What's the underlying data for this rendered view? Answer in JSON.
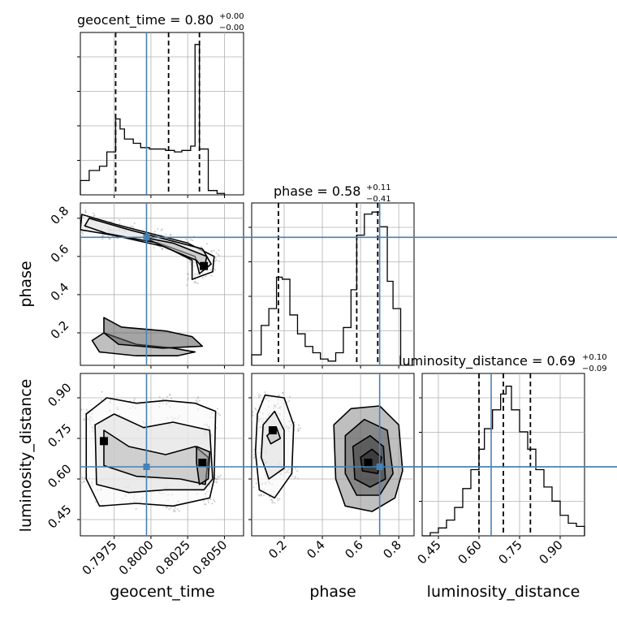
{
  "chart_data": {
    "type": "corner",
    "parameters": [
      "geocent_time",
      "phase",
      "luminosity_distance"
    ],
    "truth_color": "#4682b4",
    "contour_color": "#000000",
    "histograms": [
      {
        "param": "geocent_time",
        "title_label": "geocent_time = 0.80",
        "title_sup": "+0.00",
        "title_sub": "−0.00",
        "range": [
          0.7952,
          0.8063
        ],
        "bin_edges": [
          0.7952,
          0.7958,
          0.7965,
          0.797,
          0.7976,
          0.7979,
          0.7982,
          0.7988,
          0.7993,
          0.7999,
          0.8005,
          0.801,
          0.8016,
          0.8021,
          0.8027,
          0.803,
          0.8033,
          0.8039,
          0.8045,
          0.805
        ],
        "counts": [
          10,
          17,
          20,
          30,
          53,
          46,
          39,
          36,
          33,
          32,
          32,
          31,
          30,
          31,
          34,
          105,
          32,
          3,
          1
        ],
        "ymax": 110,
        "quantiles": [
          0.7976,
          0.8012,
          0.8033
        ],
        "truth": 0.7997,
        "ticks": [
          0.7975,
          0.8,
          0.8025,
          0.805
        ],
        "tick_labels": [
          "0.7975",
          "0.8000",
          "0.8025",
          "0.8050"
        ]
      },
      {
        "param": "phase",
        "title_label": "phase = 0.58",
        "title_sup": "+0.11",
        "title_sub": "−0.41",
        "range": [
          0.03,
          0.88
        ],
        "bin_edges": [
          0.03,
          0.08,
          0.12,
          0.16,
          0.19,
          0.23,
          0.27,
          0.31,
          0.35,
          0.39,
          0.43,
          0.47,
          0.51,
          0.55,
          0.58,
          0.62,
          0.66,
          0.7,
          0.74,
          0.77,
          0.81
        ],
        "counts": [
          5,
          19,
          27,
          42,
          41,
          24,
          15,
          9,
          6,
          3,
          2,
          6,
          18,
          36,
          62,
          72,
          73,
          66,
          40,
          27
        ],
        "ymax": 75,
        "quantiles": [
          0.17,
          0.58,
          0.69
        ],
        "truth": 0.7,
        "ticks": [
          0.2,
          0.4,
          0.6,
          0.8
        ],
        "tick_labels": [
          "0.2",
          "0.4",
          "0.6",
          "0.8"
        ]
      },
      {
        "param": "luminosity_distance",
        "title_label": "luminosity_distance = 0.69",
        "title_sup": "+0.10",
        "title_sub": "−0.09",
        "range": [
          0.39,
          0.99
        ],
        "bin_edges": [
          0.39,
          0.42,
          0.45,
          0.48,
          0.51,
          0.54,
          0.57,
          0.6,
          0.62,
          0.65,
          0.68,
          0.7,
          0.72,
          0.75,
          0.78,
          0.81,
          0.84,
          0.87,
          0.9,
          0.93,
          0.96,
          0.99
        ],
        "counts": [
          0,
          2,
          5,
          10,
          18,
          30,
          42,
          55,
          68,
          80,
          90,
          95,
          80,
          66,
          55,
          42,
          31,
          22,
          13,
          8,
          6
        ],
        "ymax": 100,
        "quantiles": [
          0.6,
          0.69,
          0.79
        ],
        "truth": 0.645,
        "ticks": [
          0.45,
          0.6,
          0.75,
          0.9
        ],
        "tick_labels": [
          "0.45",
          "0.60",
          "0.75",
          "0.90"
        ]
      }
    ],
    "pairs": [
      {
        "x_param": "geocent_time",
        "y_param": "phase",
        "x_range": [
          0.7952,
          0.8063
        ],
        "y_range": [
          0.03,
          0.88
        ],
        "truth": [
          0.7997,
          0.7
        ],
        "y_ticks": [
          0.2,
          0.4,
          0.6,
          0.8
        ],
        "y_tick_labels": [
          "0.2",
          "0.4",
          "0.6",
          "0.8"
        ],
        "density_peaks": [
          [
            0.8036,
            0.55
          ]
        ],
        "contour_paths": [
          [
            [
              0.7953,
              0.82
            ],
            [
              0.7975,
              0.77
            ],
            [
              0.8005,
              0.71
            ],
            [
              0.8025,
              0.67
            ],
            [
              0.8043,
              0.6
            ],
            [
              0.8042,
              0.52
            ],
            [
              0.8028,
              0.48
            ],
            [
              0.8028,
              0.58
            ],
            [
              0.801,
              0.65
            ],
            [
              0.7975,
              0.71
            ],
            [
              0.7952,
              0.74
            ]
          ],
          [
            [
              0.7958,
              0.8
            ],
            [
              0.7985,
              0.74
            ],
            [
              0.801,
              0.69
            ],
            [
              0.8035,
              0.64
            ],
            [
              0.8041,
              0.56
            ],
            [
              0.8033,
              0.51
            ],
            [
              0.803,
              0.6
            ],
            [
              0.8005,
              0.67
            ],
            [
              0.797,
              0.72
            ],
            [
              0.7955,
              0.76
            ]
          ],
          [
            [
              0.7995,
              0.7
            ],
            [
              0.8015,
              0.67
            ],
            [
              0.8038,
              0.6
            ],
            [
              0.8036,
              0.53
            ],
            [
              0.8031,
              0.58
            ],
            [
              0.8012,
              0.64
            ]
          ],
          [
            [
              0.7968,
              0.2
            ],
            [
              0.799,
              0.14
            ],
            [
              0.8015,
              0.12
            ],
            [
              0.803,
              0.1
            ],
            [
              0.8018,
              0.08
            ],
            [
              0.799,
              0.08
            ],
            [
              0.7965,
              0.1
            ],
            [
              0.796,
              0.16
            ]
          ],
          [
            [
              0.7968,
              0.28
            ],
            [
              0.798,
              0.23
            ],
            [
              0.801,
              0.21
            ],
            [
              0.8028,
              0.18
            ],
            [
              0.8035,
              0.13
            ],
            [
              0.8008,
              0.12
            ],
            [
              0.7978,
              0.14
            ],
            [
              0.7968,
              0.2
            ]
          ]
        ]
      },
      {
        "x_param": "geocent_time",
        "y_param": "luminosity_distance",
        "x_range": [
          0.7952,
          0.8063
        ],
        "y_range": [
          0.39,
          0.99
        ],
        "truth": [
          0.7997,
          0.645
        ],
        "y_ticks": [
          0.45,
          0.6,
          0.75,
          0.9
        ],
        "y_tick_labels": [
          "0.45",
          "0.60",
          "0.75",
          "0.90"
        ],
        "density_peaks": [
          [
            0.8035,
            0.66
          ],
          [
            0.7968,
            0.74
          ]
        ],
        "contour_paths": [
          [
            [
              0.7956,
              0.84
            ],
            [
              0.797,
              0.9
            ],
            [
              0.799,
              0.88
            ],
            [
              0.801,
              0.89
            ],
            [
              0.803,
              0.88
            ],
            [
              0.8044,
              0.85
            ],
            [
              0.8043,
              0.6
            ],
            [
              0.804,
              0.53
            ],
            [
              0.8015,
              0.5
            ],
            [
              0.799,
              0.51
            ],
            [
              0.7965,
              0.5
            ],
            [
              0.7956,
              0.6
            ]
          ],
          [
            [
              0.7962,
              0.8
            ],
            [
              0.7975,
              0.84
            ],
            [
              0.7995,
              0.79
            ],
            [
              0.8015,
              0.81
            ],
            [
              0.804,
              0.78
            ],
            [
              0.8042,
              0.6
            ],
            [
              0.8036,
              0.56
            ],
            [
              0.801,
              0.56
            ],
            [
              0.7985,
              0.55
            ],
            [
              0.7963,
              0.58
            ]
          ],
          [
            [
              0.7968,
              0.78
            ],
            [
              0.7985,
              0.72
            ],
            [
              0.801,
              0.69
            ],
            [
              0.803,
              0.72
            ],
            [
              0.8039,
              0.68
            ],
            [
              0.8037,
              0.58
            ],
            [
              0.802,
              0.6
            ],
            [
              0.799,
              0.61
            ],
            [
              0.7968,
              0.65
            ]
          ],
          [
            [
              0.8031,
              0.72
            ],
            [
              0.804,
              0.7
            ],
            [
              0.8039,
              0.6
            ],
            [
              0.8033,
              0.58
            ],
            [
              0.8031,
              0.66
            ]
          ]
        ]
      },
      {
        "x_param": "phase",
        "y_param": "luminosity_distance",
        "x_range": [
          0.03,
          0.88
        ],
        "y_range": [
          0.39,
          0.99
        ],
        "truth": [
          0.7,
          0.645
        ],
        "y_ticks": [],
        "y_tick_labels": [],
        "density_peaks": [
          [
            0.64,
            0.66
          ],
          [
            0.14,
            0.78
          ]
        ],
        "contour_paths": [
          [
            [
              0.06,
              0.84
            ],
            [
              0.1,
              0.91
            ],
            [
              0.2,
              0.9
            ],
            [
              0.25,
              0.8
            ],
            [
              0.24,
              0.62
            ],
            [
              0.15,
              0.53
            ],
            [
              0.07,
              0.56
            ],
            [
              0.05,
              0.7
            ]
          ],
          [
            [
              0.09,
              0.8
            ],
            [
              0.15,
              0.85
            ],
            [
              0.2,
              0.78
            ],
            [
              0.2,
              0.64
            ],
            [
              0.12,
              0.6
            ],
            [
              0.08,
              0.68
            ]
          ],
          [
            [
              0.11,
              0.76
            ],
            [
              0.16,
              0.79
            ],
            [
              0.18,
              0.75
            ],
            [
              0.13,
              0.73
            ]
          ],
          [
            [
              0.46,
              0.8
            ],
            [
              0.55,
              0.86
            ],
            [
              0.7,
              0.87
            ],
            [
              0.8,
              0.8
            ],
            [
              0.82,
              0.63
            ],
            [
              0.78,
              0.53
            ],
            [
              0.66,
              0.48
            ],
            [
              0.52,
              0.5
            ],
            [
              0.47,
              0.6
            ]
          ],
          [
            [
              0.52,
              0.76
            ],
            [
              0.62,
              0.82
            ],
            [
              0.74,
              0.78
            ],
            [
              0.77,
              0.62
            ],
            [
              0.7,
              0.54
            ],
            [
              0.58,
              0.54
            ],
            [
              0.52,
              0.62
            ]
          ],
          [
            [
              0.56,
              0.72
            ],
            [
              0.65,
              0.76
            ],
            [
              0.72,
              0.72
            ],
            [
              0.73,
              0.6
            ],
            [
              0.65,
              0.57
            ],
            [
              0.57,
              0.6
            ]
          ],
          [
            [
              0.6,
              0.68
            ],
            [
              0.66,
              0.71
            ],
            [
              0.71,
              0.68
            ],
            [
              0.69,
              0.62
            ],
            [
              0.61,
              0.63
            ]
          ]
        ]
      }
    ],
    "axis_labels": {
      "bottom": [
        "geocent_time",
        "phase",
        "luminosity_distance"
      ],
      "left": [
        "phase",
        "luminosity_distance"
      ]
    },
    "grid": true
  }
}
